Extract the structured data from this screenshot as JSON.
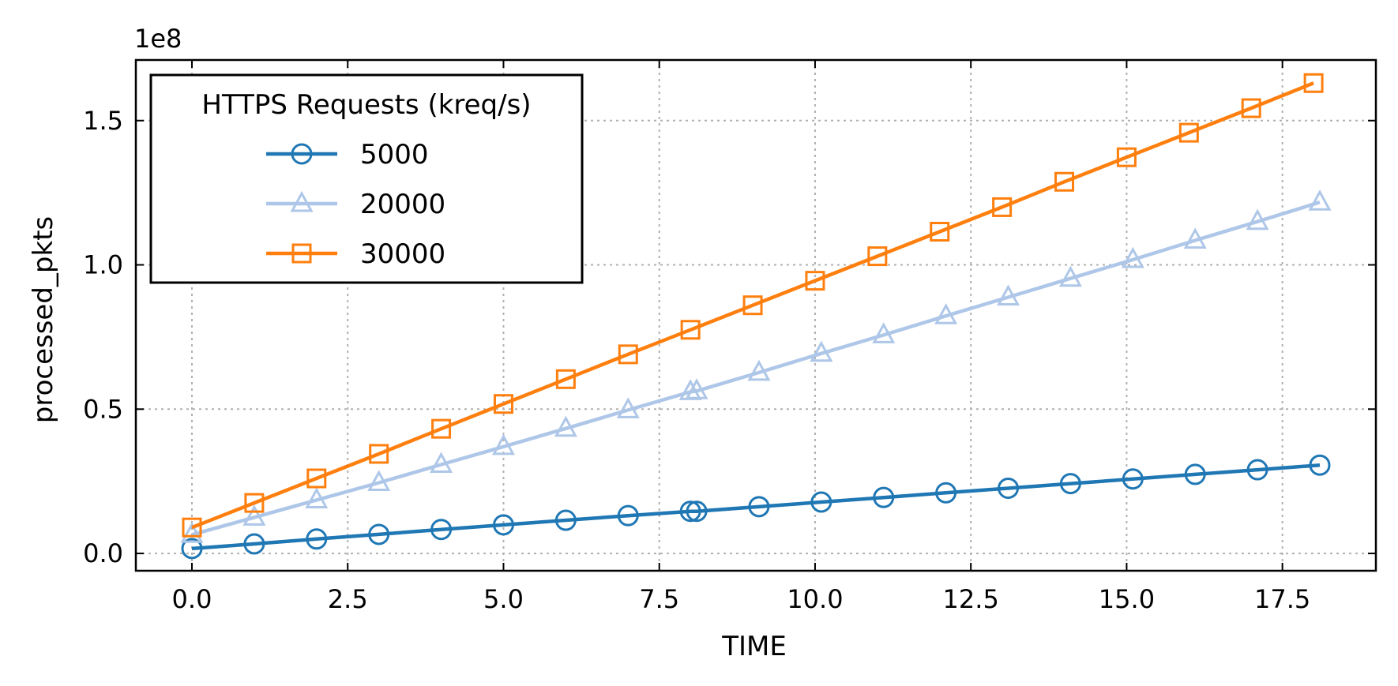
{
  "chart_data": {
    "type": "line",
    "title": "",
    "xlabel": "TIME",
    "ylabel": "processed_pkts",
    "y_offset_label": "1e8",
    "y_scale_factor": 100000000,
    "xlim": [
      -0.9,
      19.0
    ],
    "ylim": [
      -0.06,
      1.71
    ],
    "x_ticks": [
      0.0,
      2.5,
      5.0,
      7.5,
      10.0,
      12.5,
      15.0,
      17.5
    ],
    "x_tick_labels": [
      "0.0",
      "2.5",
      "5.0",
      "7.5",
      "10.0",
      "12.5",
      "15.0",
      "17.5"
    ],
    "y_ticks": [
      0.0,
      0.5,
      1.0,
      1.5
    ],
    "y_tick_labels": [
      "0.0",
      "0.5",
      "1.0",
      "1.5"
    ],
    "grid": true,
    "legend": {
      "title": "HTTPS Requests (kreq/s)",
      "placement": "top-left"
    },
    "series": [
      {
        "name": "5000",
        "color": "#1f77b4",
        "marker": "circle",
        "x": [
          0.0,
          1.0,
          2.0,
          3.0,
          4.0,
          5.0,
          6.0,
          7.0,
          8.0,
          8.1,
          9.1,
          10.1,
          11.1,
          12.1,
          13.1,
          14.1,
          15.1,
          16.1,
          17.1,
          18.1
        ],
        "y": [
          0.017,
          0.033,
          0.05,
          0.066,
          0.083,
          0.099,
          0.115,
          0.131,
          0.146,
          0.146,
          0.162,
          0.178,
          0.194,
          0.21,
          0.226,
          0.242,
          0.258,
          0.274,
          0.29,
          0.306
        ]
      },
      {
        "name": "20000",
        "color": "#aec7e8",
        "marker": "triangle",
        "x": [
          0.0,
          1.0,
          2.0,
          3.0,
          4.0,
          5.0,
          6.0,
          7.0,
          8.0,
          8.1,
          9.1,
          10.1,
          11.1,
          12.1,
          13.1,
          14.1,
          15.1,
          16.1,
          17.1,
          18.1
        ],
        "y": [
          0.065,
          0.125,
          0.185,
          0.245,
          0.308,
          0.37,
          0.433,
          0.497,
          0.56,
          0.563,
          0.627,
          0.693,
          0.757,
          0.823,
          0.888,
          0.953,
          1.018,
          1.085,
          1.15,
          1.217
        ]
      },
      {
        "name": "30000",
        "color": "#ff7f0e",
        "marker": "square",
        "x": [
          0.0,
          1.0,
          2.0,
          3.0,
          4.0,
          5.0,
          6.0,
          7.0,
          8.0,
          9.0,
          10.0,
          11.0,
          12.0,
          13.0,
          14.0,
          15.0,
          16.0,
          17.0,
          18.0
        ],
        "y": [
          0.09,
          0.175,
          0.26,
          0.345,
          0.432,
          0.518,
          0.604,
          0.69,
          0.775,
          0.86,
          0.945,
          1.03,
          1.115,
          1.2,
          1.288,
          1.373,
          1.458,
          1.543,
          1.63
        ]
      }
    ]
  }
}
